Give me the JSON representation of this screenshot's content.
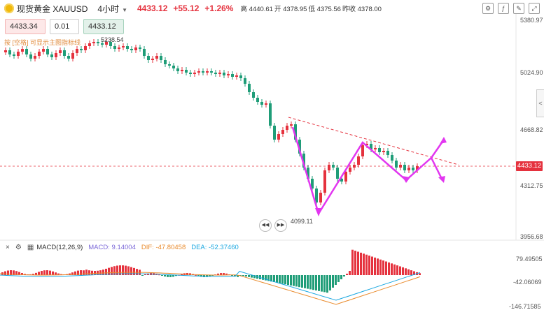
{
  "header": {
    "symbol_name": "现货黄金",
    "symbol_code": "XAUUSD",
    "timeframe": "4小时",
    "price": "4433.12",
    "change": "+55.12",
    "change_pct": "+1.26%",
    "high_label": "高",
    "high": "4440.61",
    "open_label": "开",
    "open": "4378.95",
    "low_label": "低",
    "low": "4375.56",
    "prev_label": "昨收",
    "prev": "4378.00"
  },
  "trade": {
    "sell_price": "4433.34",
    "lot": "0.01",
    "buy_price": "4433.12"
  },
  "hint_text": "按 [空格] 可显示主图指标线",
  "price_axis": [
    "5380.97",
    "5024.90",
    "4668.82",
    "4312.75",
    "3956.68"
  ],
  "last_price_tag": "4433.12",
  "chart_labels": {
    "high_mark": "5238.54",
    "low_mark": "4099.11"
  },
  "macd": {
    "name": "MACD(12,26,9)",
    "macd_label": "MACD: 9.14004",
    "dif_label": "DIF: -47.80458",
    "dea_label": "DEA: -52.37460",
    "axis": [
      "79.49505",
      "-42.06069",
      "-146.71585"
    ],
    "colors": {
      "macd": "#7b68d8",
      "dif": "#e98a2b",
      "dea": "#19a7e0"
    }
  },
  "colors": {
    "up": "#e5323e",
    "down": "#1f9d78",
    "arrow": "#e236f0"
  }
}
